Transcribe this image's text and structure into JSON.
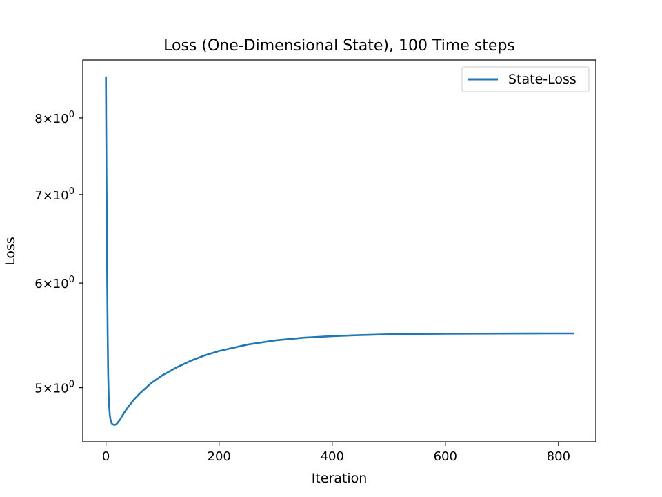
{
  "chart_data": {
    "type": "line",
    "title": "Loss (One-Dimensional State), 100 Time steps",
    "xlabel": "Iteration",
    "ylabel": "Loss",
    "yscale": "log",
    "xlim": [
      -41,
      866
    ],
    "ylim": [
      4.55,
      8.85
    ],
    "grid": false,
    "legend_position": "top-right",
    "xticks": [
      0,
      200,
      400,
      600,
      800
    ],
    "yticks": [
      {
        "value": 5,
        "base": "5×10",
        "exp": "0"
      },
      {
        "value": 6,
        "base": "6×10",
        "exp": "0"
      },
      {
        "value": 7,
        "base": "7×10",
        "exp": "0"
      },
      {
        "value": 8,
        "base": "8×10",
        "exp": "0"
      }
    ],
    "series": [
      {
        "name": "State-Loss",
        "color": "#1f77b4",
        "x": [
          0,
          1,
          2,
          3,
          4,
          5,
          6,
          7,
          8,
          10,
          12,
          15,
          18,
          20,
          25,
          30,
          40,
          50,
          60,
          80,
          100,
          125,
          150,
          175,
          200,
          250,
          300,
          350,
          400,
          450,
          500,
          550,
          600,
          650,
          700,
          750,
          800,
          828
        ],
        "values": [
          8.6,
          7.2,
          6.2,
          5.5,
          5.1,
          4.9,
          4.82,
          4.76,
          4.73,
          4.7,
          4.69,
          4.685,
          4.69,
          4.7,
          4.73,
          4.77,
          4.84,
          4.9,
          4.95,
          5.04,
          5.11,
          5.18,
          5.24,
          5.29,
          5.33,
          5.39,
          5.43,
          5.455,
          5.47,
          5.48,
          5.487,
          5.491,
          5.493,
          5.494,
          5.495,
          5.4955,
          5.496,
          5.496
        ]
      }
    ]
  }
}
